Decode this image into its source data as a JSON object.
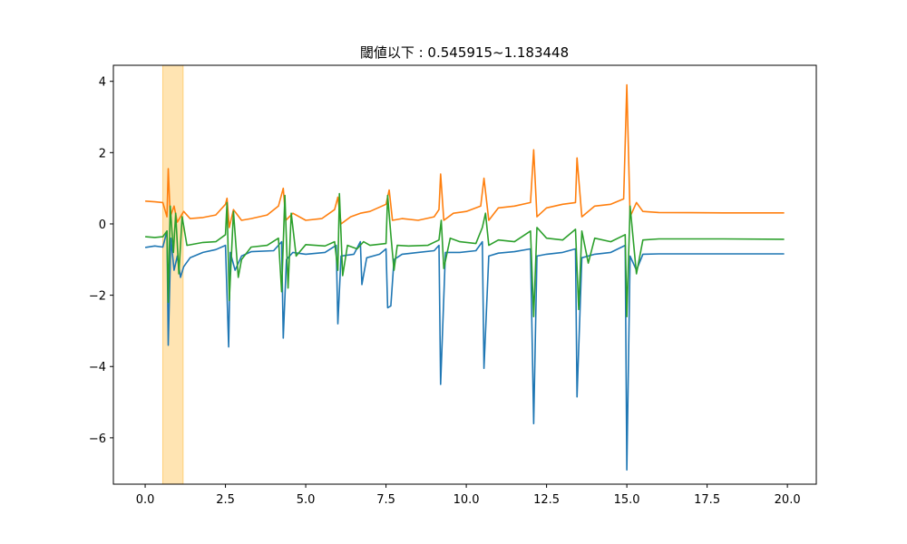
{
  "chart_data": {
    "type": "line",
    "title": "閾値以下 : 0.545915~1.183448",
    "xlabel": "",
    "ylabel": "",
    "xlim": [
      -0.99,
      20.9
    ],
    "ylim": [
      -7.3,
      4.45
    ],
    "xticks": [
      0.0,
      2.5,
      5.0,
      7.5,
      10.0,
      12.5,
      15.0,
      17.5,
      20.0
    ],
    "xtick_labels": [
      "0.0",
      "2.5",
      "5.0",
      "7.5",
      "10.0",
      "12.5",
      "15.0",
      "17.5",
      "20.0"
    ],
    "yticks": [
      -6,
      -4,
      -2,
      0,
      2,
      4
    ],
    "ytick_labels": [
      "−6",
      "−4",
      "−2",
      "0",
      "2",
      "4"
    ],
    "grid": false,
    "highlight_band": {
      "x0": 0.545915,
      "x1": 1.183448,
      "color": "#ffa500",
      "opacity": 0.3
    },
    "series": [
      {
        "color": "#1f77b4",
        "points": [
          [
            0.0,
            -0.66
          ],
          [
            0.3,
            -0.62
          ],
          [
            0.55,
            -0.65
          ],
          [
            0.68,
            -0.2
          ],
          [
            0.72,
            -3.4
          ],
          [
            0.8,
            -0.4
          ],
          [
            0.9,
            -1.3
          ],
          [
            1.0,
            -0.9
          ],
          [
            1.1,
            -1.5
          ],
          [
            1.2,
            -1.2
          ],
          [
            1.4,
            -0.95
          ],
          [
            1.8,
            -0.8
          ],
          [
            2.2,
            -0.72
          ],
          [
            2.5,
            -0.6
          ],
          [
            2.6,
            -3.45
          ],
          [
            2.65,
            -0.8
          ],
          [
            2.8,
            -1.3
          ],
          [
            3.0,
            -0.9
          ],
          [
            3.3,
            -0.78
          ],
          [
            4.0,
            -0.75
          ],
          [
            4.25,
            -0.5
          ],
          [
            4.3,
            -3.2
          ],
          [
            4.4,
            -1.0
          ],
          [
            4.6,
            -0.8
          ],
          [
            5.0,
            -0.85
          ],
          [
            5.6,
            -0.8
          ],
          [
            5.95,
            -0.6
          ],
          [
            6.0,
            -2.8
          ],
          [
            6.1,
            -0.9
          ],
          [
            6.5,
            -0.85
          ],
          [
            6.7,
            -0.5
          ],
          [
            6.75,
            -1.7
          ],
          [
            6.9,
            -0.95
          ],
          [
            7.3,
            -0.85
          ],
          [
            7.5,
            -0.7
          ],
          [
            7.55,
            -2.35
          ],
          [
            7.65,
            -2.3
          ],
          [
            7.75,
            -1.0
          ],
          [
            8.0,
            -0.85
          ],
          [
            8.5,
            -0.8
          ],
          [
            9.0,
            -0.75
          ],
          [
            9.15,
            -0.6
          ],
          [
            9.2,
            -4.5
          ],
          [
            9.35,
            -0.8
          ],
          [
            9.8,
            -0.8
          ],
          [
            10.3,
            -0.75
          ],
          [
            10.5,
            -0.5
          ],
          [
            10.55,
            -4.05
          ],
          [
            10.7,
            -0.9
          ],
          [
            11.0,
            -0.82
          ],
          [
            11.5,
            -0.78
          ],
          [
            12.0,
            -0.7
          ],
          [
            12.1,
            -5.6
          ],
          [
            12.2,
            -0.9
          ],
          [
            12.5,
            -0.85
          ],
          [
            13.0,
            -0.8
          ],
          [
            13.4,
            -0.7
          ],
          [
            13.45,
            -4.85
          ],
          [
            13.6,
            -0.95
          ],
          [
            14.0,
            -0.85
          ],
          [
            14.5,
            -0.8
          ],
          [
            14.95,
            -0.6
          ],
          [
            15.0,
            -6.9
          ],
          [
            15.1,
            -0.9
          ],
          [
            15.3,
            -1.3
          ],
          [
            15.5,
            -0.85
          ],
          [
            16.0,
            -0.84
          ],
          [
            18.0,
            -0.84
          ],
          [
            19.9,
            -0.84
          ]
        ]
      },
      {
        "color": "#ff7f0e",
        "points": [
          [
            0.0,
            0.64
          ],
          [
            0.3,
            0.62
          ],
          [
            0.55,
            0.6
          ],
          [
            0.68,
            0.2
          ],
          [
            0.72,
            1.55
          ],
          [
            0.78,
            0.2
          ],
          [
            0.9,
            0.5
          ],
          [
            1.0,
            0.05
          ],
          [
            1.2,
            0.35
          ],
          [
            1.4,
            0.15
          ],
          [
            1.8,
            0.18
          ],
          [
            2.2,
            0.25
          ],
          [
            2.5,
            0.55
          ],
          [
            2.55,
            0.72
          ],
          [
            2.62,
            -0.1
          ],
          [
            2.75,
            0.4
          ],
          [
            3.0,
            0.1
          ],
          [
            3.3,
            0.15
          ],
          [
            3.8,
            0.25
          ],
          [
            4.15,
            0.5
          ],
          [
            4.3,
            1.0
          ],
          [
            4.38,
            0.1
          ],
          [
            4.6,
            0.3
          ],
          [
            5.0,
            0.1
          ],
          [
            5.5,
            0.15
          ],
          [
            5.9,
            0.4
          ],
          [
            6.0,
            0.75
          ],
          [
            6.1,
            0.0
          ],
          [
            6.4,
            0.2
          ],
          [
            6.7,
            0.3
          ],
          [
            7.0,
            0.35
          ],
          [
            7.5,
            0.55
          ],
          [
            7.6,
            0.95
          ],
          [
            7.7,
            0.1
          ],
          [
            8.0,
            0.15
          ],
          [
            8.5,
            0.1
          ],
          [
            9.0,
            0.2
          ],
          [
            9.15,
            0.4
          ],
          [
            9.2,
            1.4
          ],
          [
            9.3,
            0.1
          ],
          [
            9.6,
            0.3
          ],
          [
            10.0,
            0.35
          ],
          [
            10.45,
            0.5
          ],
          [
            10.55,
            1.28
          ],
          [
            10.7,
            0.1
          ],
          [
            11.0,
            0.45
          ],
          [
            11.5,
            0.5
          ],
          [
            12.0,
            0.6
          ],
          [
            12.1,
            2.08
          ],
          [
            12.2,
            0.2
          ],
          [
            12.5,
            0.45
          ],
          [
            13.0,
            0.55
          ],
          [
            13.4,
            0.6
          ],
          [
            13.45,
            1.85
          ],
          [
            13.6,
            0.2
          ],
          [
            14.0,
            0.5
          ],
          [
            14.5,
            0.55
          ],
          [
            14.9,
            0.7
          ],
          [
            15.0,
            3.9
          ],
          [
            15.1,
            0.2
          ],
          [
            15.3,
            0.6
          ],
          [
            15.5,
            0.35
          ],
          [
            16.0,
            0.32
          ],
          [
            18.0,
            0.31
          ],
          [
            19.9,
            0.31
          ]
        ]
      },
      {
        "color": "#2ca02c",
        "points": [
          [
            0.0,
            -0.36
          ],
          [
            0.3,
            -0.38
          ],
          [
            0.55,
            -0.36
          ],
          [
            0.68,
            -0.2
          ],
          [
            0.72,
            -2.2
          ],
          [
            0.78,
            0.5
          ],
          [
            0.88,
            -0.8
          ],
          [
            0.95,
            0.3
          ],
          [
            1.05,
            -1.4
          ],
          [
            1.15,
            0.2
          ],
          [
            1.3,
            -0.6
          ],
          [
            1.8,
            -0.52
          ],
          [
            2.2,
            -0.5
          ],
          [
            2.5,
            -0.3
          ],
          [
            2.55,
            0.6
          ],
          [
            2.62,
            -2.15
          ],
          [
            2.75,
            0.35
          ],
          [
            2.9,
            -1.5
          ],
          [
            3.0,
            -1.0
          ],
          [
            3.3,
            -0.65
          ],
          [
            3.8,
            -0.6
          ],
          [
            4.15,
            -0.4
          ],
          [
            4.25,
            -1.9
          ],
          [
            4.35,
            0.8
          ],
          [
            4.45,
            -1.8
          ],
          [
            4.55,
            0.3
          ],
          [
            4.7,
            -0.9
          ],
          [
            5.0,
            -0.58
          ],
          [
            5.6,
            -0.62
          ],
          [
            5.9,
            -0.5
          ],
          [
            6.0,
            -1.3
          ],
          [
            6.05,
            0.85
          ],
          [
            6.15,
            -1.45
          ],
          [
            6.3,
            -0.6
          ],
          [
            6.6,
            -0.7
          ],
          [
            6.8,
            -0.5
          ],
          [
            7.0,
            -0.6
          ],
          [
            7.5,
            -0.55
          ],
          [
            7.55,
            0.8
          ],
          [
            7.65,
            -0.3
          ],
          [
            7.75,
            -1.3
          ],
          [
            7.85,
            -0.6
          ],
          [
            8.2,
            -0.62
          ],
          [
            8.8,
            -0.6
          ],
          [
            9.15,
            -0.45
          ],
          [
            9.22,
            0.1
          ],
          [
            9.3,
            -1.25
          ],
          [
            9.5,
            -0.4
          ],
          [
            9.8,
            -0.5
          ],
          [
            10.3,
            -0.55
          ],
          [
            10.5,
            -0.1
          ],
          [
            10.6,
            0.3
          ],
          [
            10.7,
            -0.6
          ],
          [
            11.0,
            -0.45
          ],
          [
            11.5,
            -0.5
          ],
          [
            12.0,
            -0.2
          ],
          [
            12.1,
            -2.6
          ],
          [
            12.2,
            -0.1
          ],
          [
            12.5,
            -0.4
          ],
          [
            13.0,
            -0.45
          ],
          [
            13.4,
            -0.15
          ],
          [
            13.5,
            -2.4
          ],
          [
            13.6,
            -0.2
          ],
          [
            13.8,
            -1.1
          ],
          [
            14.0,
            -0.4
          ],
          [
            14.5,
            -0.5
          ],
          [
            14.95,
            -0.3
          ],
          [
            15.0,
            -2.6
          ],
          [
            15.1,
            0.5
          ],
          [
            15.3,
            -1.4
          ],
          [
            15.5,
            -0.45
          ],
          [
            16.0,
            -0.42
          ],
          [
            18.0,
            -0.42
          ],
          [
            19.9,
            -0.43
          ]
        ]
      }
    ]
  }
}
